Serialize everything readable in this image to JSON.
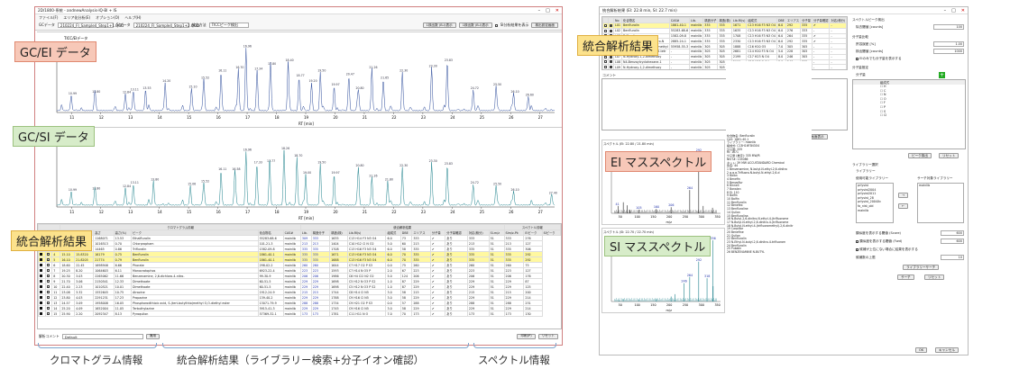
{
  "left_window": {
    "title": "2D/1800-系統 - andnewAnalysis-IQ-Bl + IS",
    "menu": [
      "ファイル(F)",
      "エリア化分析(E)",
      "オプション(O)",
      "ヘルプ(H)"
    ],
    "file_label": "GCデータ",
    "file_value": "210224_FI_Sample4_Step1+1.QGD",
    "si_label": "SIデータ",
    "si_value": "210224_FI_Sample4_Step1+2.QGD",
    "method_label": "検出方法",
    "method_value": "TICCピーク検出",
    "btn_a": "1検出数 (B-I)表示",
    "btn_b": "1検出数 (B-I)表示",
    "chk_label": "SI分析結果を表示",
    "btn_c": "検出設定画面",
    "gc_ei_title": "TICC/EIデータ",
    "gc_si_title": "TICC/SIデータ",
    "xlabel": "RT [min]",
    "xticks": [
      "11",
      "12",
      "13",
      "14",
      "15",
      "16",
      "17",
      "18",
      "19",
      "20",
      "21",
      "22",
      "23",
      "24",
      "25",
      "26",
      "27"
    ],
    "table_head_groups": [
      "クロマトグラム情報",
      "統合解析結果",
      "スペクトル情報"
    ],
    "table_columns": [
      "ID",
      "色",
      "強(s)",
      "面積",
      "面積(%)",
      "高さ",
      "高さ(%)",
      "ピーク",
      "化合物名",
      "CAS#",
      "Lib.",
      "構造分子",
      "構造(検)",
      "Lib.RI(s)",
      "組成式",
      "DBE",
      "エリアス",
      "分子量",
      "分子量確認",
      "対応(積分)",
      "SI-m/z",
      "SIm/z-Pk",
      "EIピーク",
      "SIピーク"
    ],
    "rows": [
      [
        "1",
        "10.27",
        "14.75",
        "1168071",
        "13.53",
        "Ethalfluralin",
        "55283-68-6",
        "mainlib",
        "309",
        "333",
        "1635",
        "C13 H14 F3 N3 O4",
        "6.0",
        "73",
        "333",
        "✔",
        "あり",
        "333",
        "51",
        "333",
        "276"
      ],
      [
        "2",
        "12.00",
        "14.993",
        "1016513",
        "0.70",
        "Chlorpropham",
        "101-21-3",
        "mainlib",
        "213",
        "213",
        "1404",
        "C10 H12 Cl N O2",
        "5.0",
        "60",
        "213",
        "✔",
        "あり",
        "213",
        "51",
        "213",
        "127"
      ],
      [
        "3",
        "13.93",
        "14.883",
        "14465",
        "0.86",
        "Trifluralin",
        "1582-09-8",
        "mainlib",
        "335",
        "335",
        "1708",
        "C13 H16 F3 N3 O4",
        "6.0",
        "58",
        "335",
        "✔",
        "あり",
        "335",
        "51",
        "335",
        "306"
      ],
      [
        "4",
        "15.10",
        "15.8320",
        "16179",
        "0.75",
        "Benfluralin",
        "1861-40-1",
        "mainlib",
        "335",
        "335",
        "1671",
        "C13 H16 F3 N3 O4",
        "6.0",
        "70",
        "335",
        "✔",
        "あり",
        "335",
        "51",
        "335",
        "292"
      ],
      [
        "5",
        "16.10",
        "21.8205",
        "21774",
        "0.79",
        "Benfluralin",
        "1861-40-1",
        "mainlib",
        "335",
        "335",
        "1688",
        "C13 H16 F3 N3 O4",
        "6.0",
        "70",
        "335",
        "✔",
        "あり",
        "335",
        "51",
        "335",
        "292"
      ],
      [
        "6",
        "18.60",
        "22.45",
        "1698946",
        "6.66",
        "Phorate",
        "298-02-2",
        "mainlib",
        "260",
        "260",
        "1644",
        "C7 H17 O2 P S3",
        "0.0",
        "75",
        "260",
        "✔",
        "あり",
        "260",
        "51",
        "260",
        "75"
      ],
      [
        "7",
        "19.25",
        "8.20",
        "1064603",
        "6.11",
        "Monocrotophos",
        "6923-22-4",
        "mainlib",
        "223",
        "223",
        "1593",
        "C7 H14 N O5 P",
        "2.0",
        "67",
        "223",
        "✔",
        "あり",
        "223",
        "51",
        "223",
        "127"
      ],
      [
        "8",
        "20.30",
        "3.03",
        "2265062",
        "11.66",
        "Benzenamine, 2,6-dichloro-4-nitro-",
        "99-30-9",
        "mainlib",
        "206",
        "206",
        "1986",
        "C6 H4 Cl2 N2 O2",
        "5.0",
        "124",
        "206",
        "✔",
        "あり",
        "206",
        "51",
        "206",
        "176"
      ],
      [
        "9",
        "21.70",
        "3.06",
        "2150541",
        "12.33",
        "Dimethoate",
        "60-51-5",
        "mainlib",
        "229",
        "229",
        "1698",
        "C5 H12 N O3 P S2",
        "1.0",
        "87",
        "229",
        "✔",
        "あり",
        "229",
        "51",
        "229",
        "87"
      ],
      [
        "10",
        "22.40",
        "2.23",
        "1010521",
        "10.01",
        "Dimethoate",
        "60-51-5",
        "mainlib",
        "229",
        "229",
        "1698",
        "C5 H12 N O3 P S2",
        "1.0",
        "87",
        "229",
        "✔",
        "あり",
        "229",
        "51",
        "229",
        "125"
      ],
      [
        "11",
        "23.08",
        "3.32",
        "1552645",
        "10.75",
        "Atrazine",
        "1912-24-9",
        "mainlib",
        "215",
        "215",
        "1744",
        "C8 H14 Cl N5",
        "3.0",
        "58",
        "215",
        "✔",
        "あり",
        "215",
        "51",
        "215",
        "200"
      ],
      [
        "12",
        "23.80",
        "4.03",
        "2291231",
        "17.23",
        "Propazine",
        "139-40-2",
        "mainlib",
        "229",
        "229",
        "1788",
        "C9 H16 Cl N5",
        "3.0",
        "58",
        "229",
        "✔",
        "あり",
        "229",
        "51",
        "229",
        "214"
      ],
      [
        "13",
        "24.57",
        "3.09",
        "1958008",
        "16.05",
        "Phosphorodithioic acid, S-(tert-butylthio)methyl O,O-diethyl ester",
        "13071-79-9",
        "mainlib",
        "288",
        "288",
        "1734",
        "C9 H21 O2 P S3",
        "0.0",
        "57",
        "288",
        "✔",
        "あり",
        "288",
        "51",
        "288",
        "231"
      ],
      [
        "14",
        "25.20",
        "4.09",
        "1652004",
        "11.05",
        "Terbuthylazine",
        "5915-41-3",
        "mainlib",
        "229",
        "229",
        "1745",
        "C9 H16 Cl N5",
        "3.0",
        "58",
        "229",
        "✔",
        "あり",
        "229",
        "51",
        "229",
        "214"
      ],
      [
        "15",
        "25.90",
        "2.20",
        "2092347",
        "8.13",
        "Pyroquilon",
        "57369-32-1",
        "mainlib",
        "173",
        "173",
        "1781",
        "C11 H11 N O",
        "7.0",
        "70",
        "173",
        "✔",
        "あり",
        "173",
        "51",
        "173",
        "130"
      ]
    ],
    "comment_label": "解析コメント",
    "comment_value": "Default",
    "comment_btn": "適用",
    "btn_print": "印刷(P)",
    "btn_reset": "リセット"
  },
  "callouts": {
    "gc_ei": "GC/EI データ",
    "gc_si": "GC/SI データ",
    "result_left": "統合解析結果",
    "result_right": "統合解析結果",
    "ei_ms": "EI マススペクトル",
    "si_ms": "SI マススペクトル"
  },
  "bottom_labels": {
    "chrom": "クロマトグラム情報",
    "integrated": "統合解析結果（ライブラリー検索+分子イオン確認）",
    "spectrum": "スペクトル情報"
  },
  "right_window": {
    "title": "統合解析結果 (EI: 22.8 min, SI: 22.7 min)",
    "list_columns": [
      "No",
      "化合物名",
      "CAS#",
      "Lib.",
      "構造分子",
      "構造(検)",
      "Lib.RI(s)",
      "組成式",
      "DBE",
      "エリアス",
      "分子量",
      "分子量確認",
      "対応(積分)"
    ],
    "list_rows": [
      [
        "L01",
        "Benfluralin",
        "1861-40-1",
        "mainlib",
        "335",
        "335",
        "1671",
        "C13 H16 F3 N3 O4",
        "6.0",
        "292",
        "335",
        "✔",
        "-"
      ],
      [
        "L02",
        "Benfluralin",
        "55283-68-6",
        "mainlib",
        "335",
        "335",
        "1635",
        "C13 H16 F3 N3 O4",
        "6.0",
        "276",
        "333",
        "-",
        "-"
      ],
      [
        "L03",
        "Trifluralin",
        "1582-09-8",
        "mainlib",
        "335",
        "335",
        "1708",
        "C13 H16 F3 N3 O4",
        "6.0",
        "264",
        "335",
        "✔",
        "-"
      ],
      [
        "L04",
        "Benzenamine, 2,6-dinitro-N",
        "2885-24-1",
        "mainlib",
        "335",
        "335",
        "2330",
        "C13 H16 F3 N3 O4",
        "6.0",
        "292",
        "335",
        "✔",
        "-"
      ],
      [
        "L05",
        "2-Cyclohexen-1-one, 3-methyl",
        "55958-55-3",
        "mainlib",
        "305",
        "305",
        "1888",
        "C16 H20 O5",
        "7.0",
        "305",
        "305",
        "-",
        "-"
      ],
      [
        "L06",
        "2,2,2-Trifluoro-N-(2,3,4,5-tetr",
        "-",
        "mainlib",
        "305",
        "305",
        "2681",
        "C14 H20 F3 N O4",
        "5.0",
        "228",
        "305",
        "-",
        "-"
      ],
      [
        "L07",
        "N-Hydroxy-1,2-dimethoxy",
        "-",
        "mainlib",
        "305",
        "305",
        "2199",
        "C17 H23 N O4",
        "8.0",
        "246",
        "305",
        "-",
        "-"
      ],
      [
        "L08",
        "N4-Benzoylcyclohexane-1",
        "-",
        "mainlib",
        "305",
        "305",
        "2199",
        "C17 H23 N O4",
        "8.0",
        "246",
        "305",
        "-",
        "-"
      ],
      [
        "L09",
        "N-Hydroxy-1,2-dimethoxy",
        "-",
        "mainlib",
        "305",
        "305",
        "2199",
        "C17 H23 N O4",
        "8.0",
        "246",
        "305",
        "-",
        "-"
      ]
    ],
    "comment_label": "コメント",
    "ei_title": "スペクトル (EI: 22.80 / 21.80 min)",
    "si_title": "スペクトル (SI: 22.70 / 22.70 min)",
    "ei_btn": "1画面表示",
    "info_lines": [
      "化合物名: Benfluralin",
      "CAS: 1861-40-1",
      "ライブラリー: mainlib",
      "組成式: C13H16F3N3O4",
      "分子量: 335",
      "RI: 1671",
      "分子量 (推定): 335 MW/R",
      "NIST#: 135086",
      "ネット: 39 MW ACCUSTANDARD Chemical",
      "別名: 44",
      "1 Benzenamine, N-butyl-N-ethyl-2,6-dinitro",
      "2 α,α,α-Trifluoro-N-butyl-N-ethyl-2,6-d",
      "3 Balan",
      "4 Benefin",
      "5 Benzoflur",
      "6 Binnell",
      "7 Bonalan",
      "8 EL 110",
      "9 Balfin",
      "10 Balfin",
      "11 Benfluralin",
      "12 Benefex",
      "13 Benfluraline",
      "14 Quilan",
      "15 Benfluralina",
      "16 N-Butyl-2,6-dinitro-N-ethyl-4-(trifluorome",
      "17 N-Butyl-N-ethyl-2,6-dinitro-4-(trifluorome",
      "18 N-Butyl-N-ethyl-4-(trifluoromethyl)-2,6-dinitr",
      "19 Carpidor",
      "20 Benefine",
      "21 Quilan",
      "22 Benfluralin",
      "23 N-Ethyl-N-butyl-2,6-dinitro-4-trifluorom",
      "24 Benfluralin",
      "25 Pubalin",
      "26 BENZENAMINE N-BUTYL"
    ],
    "settings": {
      "section1": "スペクトルピーク検出",
      "min_count_label": "除去閾値 [counts]",
      "min_count_value": "100",
      "section2": "分子量比較",
      "tol_label": "許容誤差 [%]",
      "tol_value": "1.00",
      "tol2_label": "検出閾値 [counts]",
      "tol2_value": "1000",
      "chk_ei": "EIのみでも分子量を表示する",
      "section3": "分子量推定",
      "mz_label": "分子量",
      "formula_header": "組成式",
      "formula_rows": [
        [
          "☐",
          "H"
        ],
        [
          "☐",
          "C"
        ],
        [
          "☐",
          "N"
        ],
        [
          "☐",
          "O"
        ],
        [
          "☐",
          "F"
        ],
        [
          "☐",
          "P"
        ],
        [
          "☐",
          "S"
        ],
        [
          "☐",
          "Cl"
        ]
      ],
      "btn_search": "ピーク検出",
      "btn_reset": "リセット",
      "section4": "ライブラリー選択",
      "lib_header": "ライブラリー",
      "lib_avail_label": "使用可能ライブラリー",
      "lib_used_label": "サーチ対象ライブラリー",
      "lib_avail": [
        "prlysist",
        "prlysist2004",
        "prlysist2011",
        "prlysist_28",
        "prlysist_2004Xc",
        "fa_nist_old",
        "mainlib"
      ],
      "lib_used": [
        "mainlib"
      ],
      "btn_add": "→",
      "btn_remove": "←",
      "row1_label": "類似度を表示する閾値 (Score)",
      "row1_value": "600",
      "row2_label": "類似度を表示する閾値 (Fwd)",
      "row2_value": "600",
      "row3_label": "候補が上位にない場合に結果を表示する",
      "row4_label": "候補数の上限",
      "row4_value": "10",
      "btn_libsearch": "ライブラリーサーチ",
      "btn_ok_left": "サーチ",
      "btn_reset2": "リセット",
      "btn_ok": "OK",
      "btn_cancel": "キャンセル"
    }
  },
  "ei_spectrum": {
    "peaks": [
      [
        41,
        120
      ],
      [
        57,
        180
      ],
      [
        69,
        130
      ],
      [
        77,
        60
      ],
      [
        105,
        60
      ],
      [
        160,
        70
      ],
      [
        206,
        100
      ],
      [
        264,
        380
      ],
      [
        292,
        1000
      ],
      [
        306,
        120
      ],
      [
        335,
        90
      ]
    ],
    "labels": [
      "292",
      "264",
      "206",
      "160",
      "105",
      "41"
    ],
    "xticks": [
      "50",
      "100",
      "150",
      "200",
      "250",
      "300",
      "350"
    ],
    "xlabel": "m/z"
  },
  "si_spectrum": {
    "peaks": [
      [
        43,
        20
      ],
      [
        57,
        40
      ],
      [
        105,
        30
      ],
      [
        160,
        40
      ],
      [
        206,
        80
      ],
      [
        218,
        120
      ],
      [
        246,
        300
      ],
      [
        264,
        400
      ],
      [
        292,
        650
      ],
      [
        318,
        380
      ],
      [
        336,
        1000
      ],
      [
        337,
        250
      ]
    ],
    "labels": [
      "336",
      "292",
      "318",
      "264",
      "246"
    ],
    "xticks": [
      "50",
      "100",
      "150",
      "200",
      "250",
      "300",
      "350"
    ],
    "xlabel": "m/z"
  },
  "chart_data": [
    {
      "type": "line",
      "title": "TICC/EIデータ",
      "xlabel": "RT [min]",
      "x_range": [
        10.5,
        27.5
      ],
      "peaks": [
        [
          10.99,
          0.22
        ],
        [
          11.8,
          0.25
        ],
        [
          12.84,
          0.24
        ],
        [
          13.11,
          0.28
        ],
        [
          13.53,
          0.3
        ],
        [
          14.2,
          0.4
        ],
        [
          15.1,
          0.32
        ],
        [
          15.52,
          0.45
        ],
        [
          16.11,
          0.55
        ],
        [
          16.7,
          0.6
        ],
        [
          16.96,
          0.9
        ],
        [
          17.34,
          0.58
        ],
        [
          17.8,
          0.65
        ],
        [
          18.4,
          0.7
        ],
        [
          18.77,
          0.48
        ],
        [
          19.2,
          0.4
        ],
        [
          19.5,
          0.55
        ],
        [
          19.97,
          0.35
        ],
        [
          20.47,
          0.5
        ],
        [
          20.8,
          0.3
        ],
        [
          21.26,
          0.6
        ],
        [
          21.65,
          0.45
        ],
        [
          22.3,
          0.55
        ],
        [
          23.3,
          0.62
        ],
        [
          23.83,
          0.7
        ],
        [
          24.72,
          0.3
        ],
        [
          25.5,
          0.35
        ],
        [
          26.1,
          0.25
        ],
        [
          26.6,
          0.2
        ]
      ]
    },
    {
      "type": "line",
      "title": "TICC/SIデータ",
      "xlabel": "RT [min]",
      "x_range": [
        10.5,
        27.5
      ],
      "peaks": [
        [
          10.99,
          0.2
        ],
        [
          11.8,
          0.22
        ],
        [
          12.84,
          0.25
        ],
        [
          13.11,
          0.3
        ],
        [
          13.8,
          0.35
        ],
        [
          15.06,
          0.28
        ],
        [
          15.52,
          0.32
        ],
        [
          16.11,
          0.5
        ],
        [
          16.58,
          0.5
        ],
        [
          16.96,
          0.78
        ],
        [
          17.33,
          0.6
        ],
        [
          17.77,
          0.62
        ],
        [
          18.26,
          0.8
        ],
        [
          18.7,
          0.7
        ],
        [
          19.0,
          0.45
        ],
        [
          19.5,
          0.6
        ],
        [
          19.97,
          0.45
        ],
        [
          20.8,
          0.55
        ],
        [
          21.26,
          0.4
        ],
        [
          21.8,
          0.35
        ],
        [
          22.3,
          0.55
        ],
        [
          23.3,
          0.62
        ],
        [
          23.83,
          0.58
        ],
        [
          24.72,
          0.3
        ],
        [
          25.5,
          0.28
        ],
        [
          26.1,
          0.2
        ],
        [
          27.4,
          0.15
        ]
      ]
    }
  ]
}
